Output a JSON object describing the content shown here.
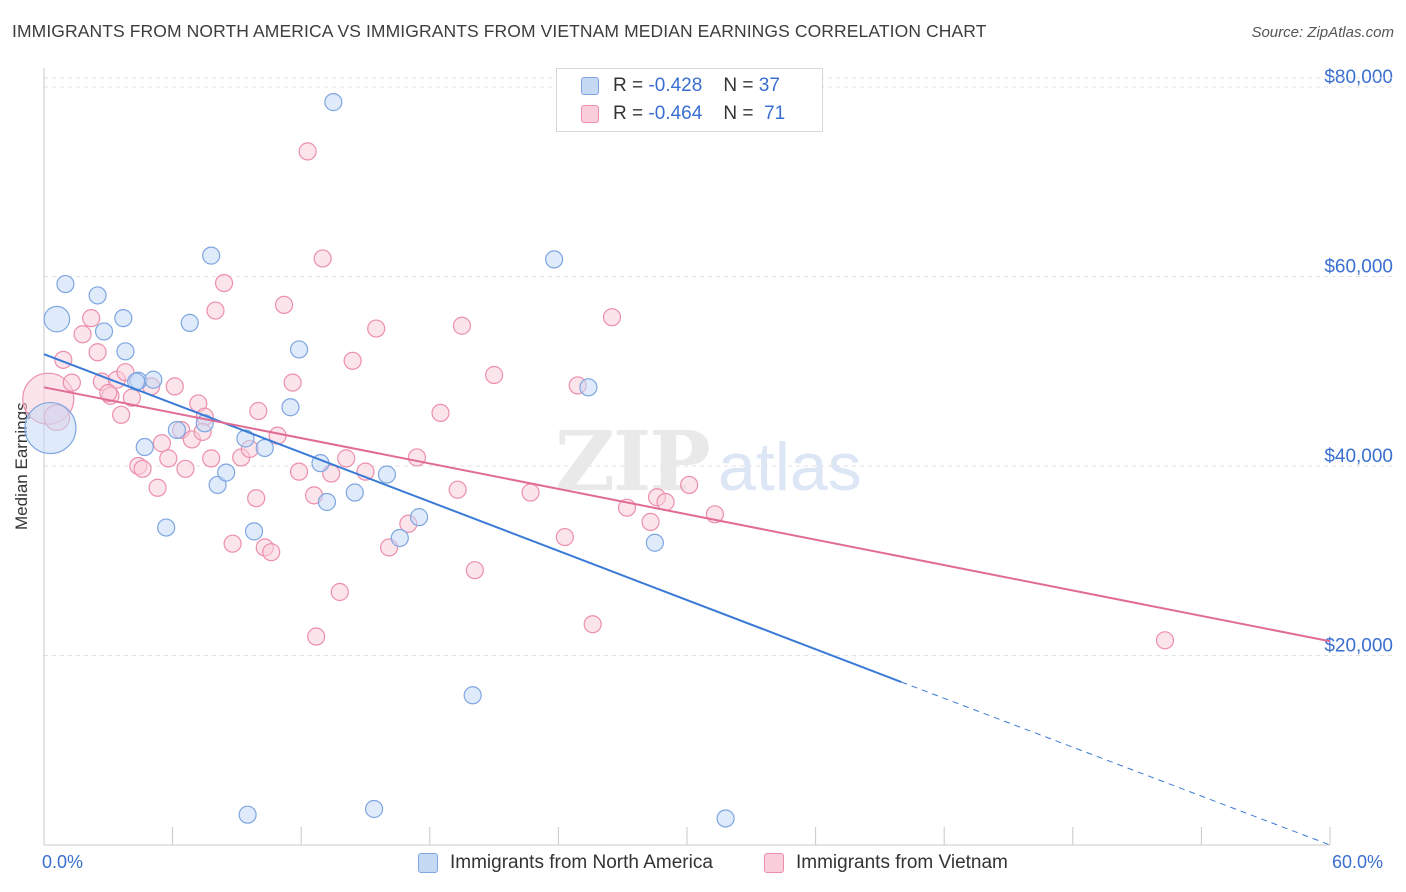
{
  "title": "IMMIGRANTS FROM NORTH AMERICA VS IMMIGRANTS FROM VIETNAM MEDIAN EARNINGS CORRELATION CHART",
  "source": "Source: ZipAtlas.com",
  "watermark": {
    "zip": "ZIP",
    "atlas": "atlas"
  },
  "legend": {
    "rows": [
      {
        "r_label": "R =",
        "r_value": "-0.428",
        "n_label": "N =",
        "n_value": "37"
      },
      {
        "r_label": "R =",
        "r_value": "-0.464",
        "n_label": "N =",
        "n_value": "71"
      }
    ]
  },
  "colors": {
    "blue_fill": "#c5d9f5",
    "blue_stroke": "#7ea6e0",
    "blue_line": "#3a7bd5",
    "pink_fill": "#f9cdda",
    "pink_stroke": "#ec8fad",
    "pink_line": "#e06c95",
    "axis_text": "#3a6fd1",
    "grid": "#e2e2e2"
  },
  "chart_data": {
    "type": "scatter",
    "title": "IMMIGRANTS FROM NORTH AMERICA VS IMMIGRANTS FROM VIETNAM MEDIAN EARNINGS CORRELATION CHART",
    "xlabel": "",
    "ylabel": "Median Earnings",
    "xlim": [
      0,
      60
    ],
    "ylim": [
      0,
      82000
    ],
    "x_tick_labels": [
      "0.0%",
      "60.0%"
    ],
    "y_ticks": [
      20000,
      40000,
      60000,
      80000
    ],
    "y_tick_labels": [
      "$20,000",
      "$40,000",
      "$60,000",
      "$80,000"
    ],
    "grid": true,
    "legend_position": "top-center",
    "series": [
      {
        "name": "Immigrants from North America",
        "color": "#7ea6e0",
        "trend": {
          "x0": 0,
          "y0": 51800,
          "x1": 40,
          "y1": 17200,
          "dashed_to_x": 60,
          "dashed_to_y": 0
        },
        "points": [
          [
            0.3,
            44000,
            3
          ],
          [
            1.0,
            59200,
            1
          ],
          [
            2.5,
            58000,
            1
          ],
          [
            0.6,
            55500,
            1.5
          ],
          [
            2.8,
            54200,
            1
          ],
          [
            3.7,
            55600,
            1
          ],
          [
            4.4,
            49000,
            1
          ],
          [
            3.8,
            52100,
            1
          ],
          [
            5.1,
            49100,
            1
          ],
          [
            4.7,
            42000,
            1
          ],
          [
            6.2,
            43800,
            1
          ],
          [
            6.8,
            55100,
            1
          ],
          [
            7.5,
            44500,
            1
          ],
          [
            7.8,
            62200,
            1
          ],
          [
            8.1,
            38000,
            1
          ],
          [
            8.5,
            39300,
            1
          ],
          [
            9.4,
            42900,
            1
          ],
          [
            9.8,
            33100,
            1
          ],
          [
            10.3,
            41900,
            1
          ],
          [
            11.5,
            46200,
            1
          ],
          [
            11.9,
            52300,
            1
          ],
          [
            12.9,
            40300,
            1
          ],
          [
            13.2,
            36200,
            1
          ],
          [
            14.5,
            37200,
            1
          ],
          [
            13.5,
            78400,
            1
          ],
          [
            16.0,
            39100,
            1
          ],
          [
            16.6,
            32400,
            1
          ],
          [
            17.5,
            34600,
            1
          ],
          [
            20.0,
            15800,
            1
          ],
          [
            23.8,
            61800,
            1
          ],
          [
            25.4,
            48300,
            1
          ],
          [
            28.5,
            31900,
            1
          ],
          [
            5.7,
            33500,
            1
          ],
          [
            9.5,
            3200,
            1
          ],
          [
            15.4,
            3800,
            1
          ],
          [
            31.8,
            2800,
            1
          ],
          [
            4.3,
            48900,
            1
          ]
        ]
      },
      {
        "name": "Immigrants from Vietnam",
        "color": "#ec8fad",
        "trend": {
          "x0": 0,
          "y0": 48300,
          "x1": 60,
          "y1": 21500
        },
        "points": [
          [
            0.2,
            47100,
            3
          ],
          [
            0.6,
            45100,
            1.5
          ],
          [
            0.9,
            51200,
            1
          ],
          [
            1.3,
            48800,
            1
          ],
          [
            1.8,
            53900,
            1
          ],
          [
            2.2,
            55600,
            1
          ],
          [
            2.5,
            52000,
            1
          ],
          [
            2.7,
            48900,
            1
          ],
          [
            3.1,
            47400,
            1
          ],
          [
            3.4,
            49100,
            1
          ],
          [
            3.6,
            45400,
            1
          ],
          [
            3.8,
            49900,
            1
          ],
          [
            4.1,
            47200,
            1
          ],
          [
            4.4,
            40000,
            1
          ],
          [
            4.6,
            39700,
            1
          ],
          [
            5.0,
            48400,
            1
          ],
          [
            5.3,
            37700,
            1
          ],
          [
            5.5,
            42400,
            1
          ],
          [
            5.8,
            40800,
            1
          ],
          [
            6.1,
            48400,
            1
          ],
          [
            6.4,
            43800,
            1
          ],
          [
            6.6,
            39700,
            1
          ],
          [
            6.9,
            42800,
            1
          ],
          [
            7.2,
            46600,
            1
          ],
          [
            7.5,
            45200,
            1
          ],
          [
            7.8,
            40800,
            1
          ],
          [
            8.0,
            56400,
            1
          ],
          [
            8.4,
            59300,
            1
          ],
          [
            8.8,
            31800,
            1
          ],
          [
            9.2,
            40900,
            1
          ],
          [
            9.6,
            41800,
            1
          ],
          [
            9.9,
            36600,
            1
          ],
          [
            10.3,
            31400,
            1
          ],
          [
            10.6,
            30900,
            1
          ],
          [
            10.9,
            43200,
            1
          ],
          [
            11.2,
            57000,
            1
          ],
          [
            11.6,
            48800,
            1
          ],
          [
            11.9,
            39400,
            1
          ],
          [
            12.3,
            73200,
            1
          ],
          [
            12.7,
            22000,
            1
          ],
          [
            13.0,
            61900,
            1
          ],
          [
            13.4,
            39200,
            1
          ],
          [
            13.8,
            26700,
            1
          ],
          [
            14.1,
            40800,
            1
          ],
          [
            14.4,
            51100,
            1
          ],
          [
            15.0,
            39400,
            1
          ],
          [
            15.5,
            54500,
            1
          ],
          [
            16.1,
            31400,
            1
          ],
          [
            17.0,
            33900,
            1
          ],
          [
            17.4,
            40900,
            1
          ],
          [
            18.5,
            45600,
            1
          ],
          [
            19.3,
            37500,
            1
          ],
          [
            20.1,
            29000,
            1
          ],
          [
            21.0,
            49600,
            1
          ],
          [
            22.7,
            37200,
            1
          ],
          [
            24.3,
            32500,
            1
          ],
          [
            24.9,
            48500,
            1
          ],
          [
            25.6,
            23300,
            1
          ],
          [
            26.5,
            55700,
            1
          ],
          [
            27.2,
            35600,
            1
          ],
          [
            28.6,
            36700,
            1
          ],
          [
            29.0,
            36200,
            1
          ],
          [
            30.1,
            38000,
            1
          ],
          [
            31.3,
            34900,
            1
          ],
          [
            28.3,
            34100,
            1
          ],
          [
            7.4,
            43600,
            1
          ],
          [
            10.0,
            45800,
            1
          ],
          [
            3.0,
            47700,
            1
          ],
          [
            19.5,
            54800,
            1
          ],
          [
            52.3,
            21600,
            1
          ],
          [
            12.6,
            36900,
            1
          ]
        ]
      }
    ]
  },
  "bottom_legend": [
    "Immigrants from North America",
    "Immigrants from Vietnam"
  ],
  "x_tick_left": "0.0%",
  "x_tick_right": "60.0%"
}
